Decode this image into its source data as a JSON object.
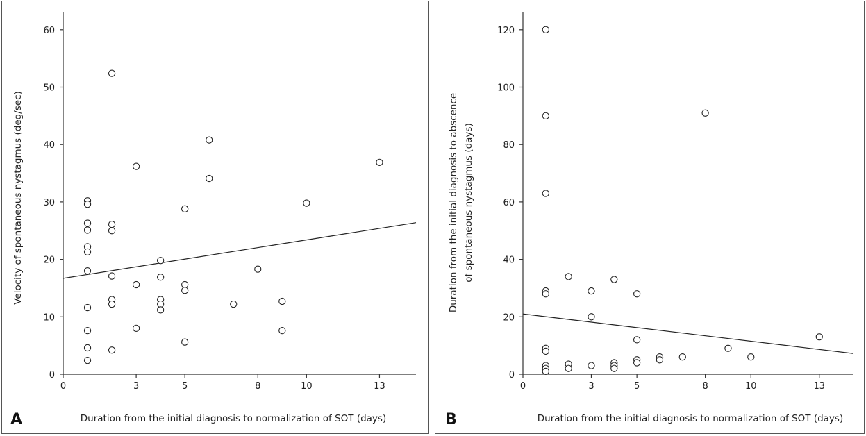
{
  "chart_data": [
    {
      "type": "scatter",
      "panel_label": "A",
      "xlabel": "Duration from the initial diagnosis to normalization of SOT (days)",
      "ylabel": "Velocity of spontaneous nystagmus (deg/sec)",
      "x_ticks": [
        "0",
        "3",
        "5",
        "8",
        "10",
        "13"
      ],
      "x_tick_values": [
        0,
        3,
        5,
        8,
        10,
        13
      ],
      "y_ticks": [
        "0",
        "10",
        "20",
        "30",
        "40",
        "50",
        "60"
      ],
      "y_tick_values": [
        0,
        10,
        20,
        30,
        40,
        50,
        60
      ],
      "xlim": [
        0,
        14.5
      ],
      "ylim": [
        0,
        63
      ],
      "points": [
        {
          "x": 1,
          "y": 30.2
        },
        {
          "x": 1,
          "y": 29.6
        },
        {
          "x": 1,
          "y": 26.3
        },
        {
          "x": 1,
          "y": 25.1
        },
        {
          "x": 1,
          "y": 22.2
        },
        {
          "x": 1,
          "y": 21.3
        },
        {
          "x": 1,
          "y": 18.0
        },
        {
          "x": 1,
          "y": 11.6
        },
        {
          "x": 1,
          "y": 7.6
        },
        {
          "x": 1,
          "y": 4.6
        },
        {
          "x": 1,
          "y": 2.4
        },
        {
          "x": 2,
          "y": 52.4
        },
        {
          "x": 2,
          "y": 26.1
        },
        {
          "x": 2,
          "y": 25.0
        },
        {
          "x": 2,
          "y": 17.1
        },
        {
          "x": 2,
          "y": 13.0
        },
        {
          "x": 2,
          "y": 12.2
        },
        {
          "x": 2,
          "y": 4.2
        },
        {
          "x": 3,
          "y": 36.2
        },
        {
          "x": 3,
          "y": 15.6
        },
        {
          "x": 3,
          "y": 8.0
        },
        {
          "x": 4,
          "y": 19.8
        },
        {
          "x": 4,
          "y": 16.9
        },
        {
          "x": 4,
          "y": 13.0
        },
        {
          "x": 4,
          "y": 12.2
        },
        {
          "x": 4,
          "y": 11.2
        },
        {
          "x": 5,
          "y": 28.8
        },
        {
          "x": 5,
          "y": 15.6
        },
        {
          "x": 5,
          "y": 14.6
        },
        {
          "x": 5,
          "y": 5.6
        },
        {
          "x": 6,
          "y": 40.8
        },
        {
          "x": 6,
          "y": 34.1
        },
        {
          "x": 7,
          "y": 12.2
        },
        {
          "x": 8,
          "y": 18.3
        },
        {
          "x": 9,
          "y": 12.7
        },
        {
          "x": 9,
          "y": 7.6
        },
        {
          "x": 10,
          "y": 29.8
        },
        {
          "x": 13,
          "y": 36.9
        }
      ],
      "fit_line": {
        "x": [
          0,
          14.5
        ],
        "y": [
          16.7,
          26.4
        ]
      }
    },
    {
      "type": "scatter",
      "panel_label": "B",
      "xlabel": "Duration from the initial diagnosis to normalization of SOT (days)",
      "ylabel_line1": "Duration from the initial diagnosis to abscence",
      "ylabel_line2": "of spontaneous nystagmus (days)",
      "x_ticks": [
        "0",
        "3",
        "5",
        "8",
        "10",
        "13"
      ],
      "x_tick_values": [
        0,
        3,
        5,
        8,
        10,
        13
      ],
      "y_ticks": [
        "0",
        "20",
        "40",
        "60",
        "80",
        "100",
        "120"
      ],
      "y_tick_values": [
        0,
        20,
        40,
        60,
        80,
        100,
        120
      ],
      "xlim": [
        0,
        14.5
      ],
      "ylim": [
        0,
        126
      ],
      "points": [
        {
          "x": 1,
          "y": 120
        },
        {
          "x": 1,
          "y": 90
        },
        {
          "x": 1,
          "y": 63
        },
        {
          "x": 1,
          "y": 29
        },
        {
          "x": 1,
          "y": 28
        },
        {
          "x": 1,
          "y": 9
        },
        {
          "x": 1,
          "y": 8
        },
        {
          "x": 1,
          "y": 3
        },
        {
          "x": 1,
          "y": 2
        },
        {
          "x": 1,
          "y": 1
        },
        {
          "x": 2,
          "y": 34
        },
        {
          "x": 2,
          "y": 3.5
        },
        {
          "x": 2,
          "y": 2
        },
        {
          "x": 3,
          "y": 29
        },
        {
          "x": 3,
          "y": 20
        },
        {
          "x": 3,
          "y": 3
        },
        {
          "x": 4,
          "y": 33
        },
        {
          "x": 4,
          "y": 4
        },
        {
          "x": 4,
          "y": 3
        },
        {
          "x": 4,
          "y": 2
        },
        {
          "x": 5,
          "y": 28
        },
        {
          "x": 5,
          "y": 12
        },
        {
          "x": 5,
          "y": 5
        },
        {
          "x": 5,
          "y": 4
        },
        {
          "x": 6,
          "y": 6
        },
        {
          "x": 6,
          "y": 5
        },
        {
          "x": 7,
          "y": 6
        },
        {
          "x": 8,
          "y": 91
        },
        {
          "x": 9,
          "y": 9
        },
        {
          "x": 10,
          "y": 6
        },
        {
          "x": 13,
          "y": 13
        }
      ],
      "fit_line": {
        "x": [
          0,
          14.5
        ],
        "y": [
          21,
          7.2
        ]
      }
    }
  ]
}
